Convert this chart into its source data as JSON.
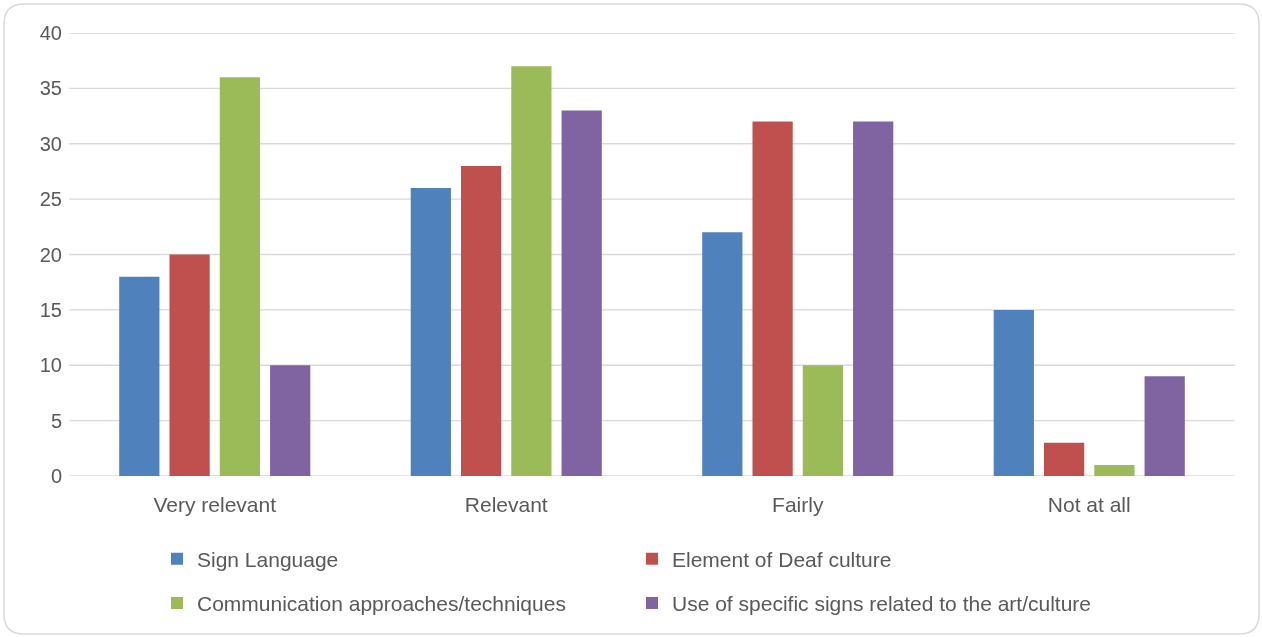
{
  "chart_data": {
    "type": "bar",
    "categories": [
      "Very relevant",
      "Relevant",
      "Fairly",
      "Not at all"
    ],
    "series": [
      {
        "name": "Sign Language",
        "color": "#4f81bd",
        "values": [
          18,
          26,
          22,
          15
        ]
      },
      {
        "name": "Element of Deaf culture",
        "color": "#c0504d",
        "values": [
          20,
          28,
          32,
          3
        ]
      },
      {
        "name": "Communication approaches/techniques",
        "color": "#9bbb59",
        "values": [
          36,
          37,
          10,
          1
        ]
      },
      {
        "name": "Use of specific signs related to the art/culture",
        "color": "#8064a2",
        "values": [
          10,
          33,
          32,
          9
        ]
      }
    ],
    "ylim": [
      0,
      40
    ],
    "yticks": [
      0,
      5,
      10,
      15,
      20,
      25,
      30,
      35,
      40
    ],
    "grid": "y",
    "legend": "bottom"
  }
}
